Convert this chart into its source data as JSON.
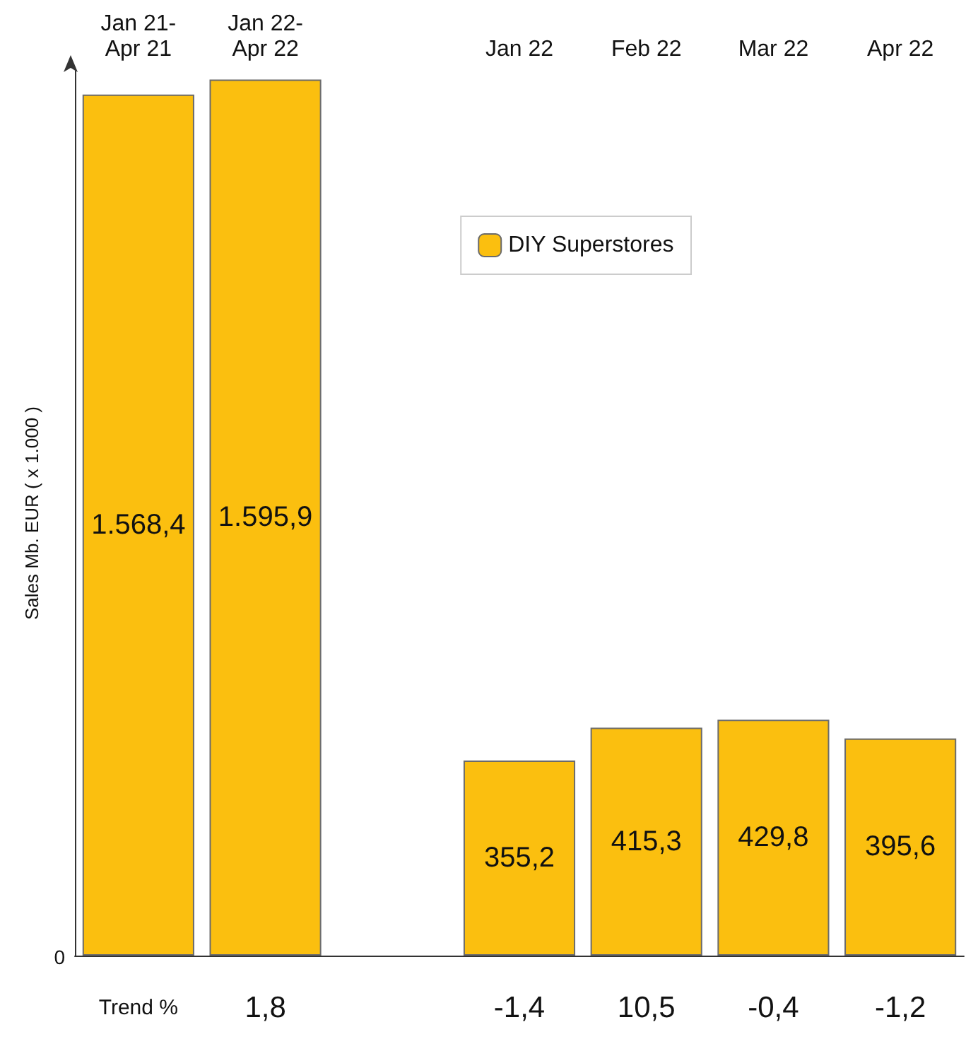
{
  "chart_data": {
    "type": "bar",
    "ylabel": "Sales Mb. EUR ( x 1.000 )",
    "categories": [
      "Jan 21-\nApr 21",
      "Jan 22-\nApr 22",
      null,
      "Jan 22",
      "Feb 22",
      "Mar 22",
      "Apr 22"
    ],
    "series": [
      {
        "name": "DIY Superstores",
        "color": "#fbbf0f",
        "values": [
          1568.4,
          1595.9,
          null,
          355.2,
          415.3,
          429.8,
          395.6
        ],
        "value_labels": [
          "1.568,4",
          "1.595,9",
          null,
          "355,2",
          "415,3",
          "429,8",
          "395,6"
        ]
      }
    ],
    "legend": "top right",
    "annotations": [
      "0",
      "Trend %",
      "1,8",
      "-1,4",
      "10,5",
      "-0,4",
      "-1,2"
    ]
  }
}
